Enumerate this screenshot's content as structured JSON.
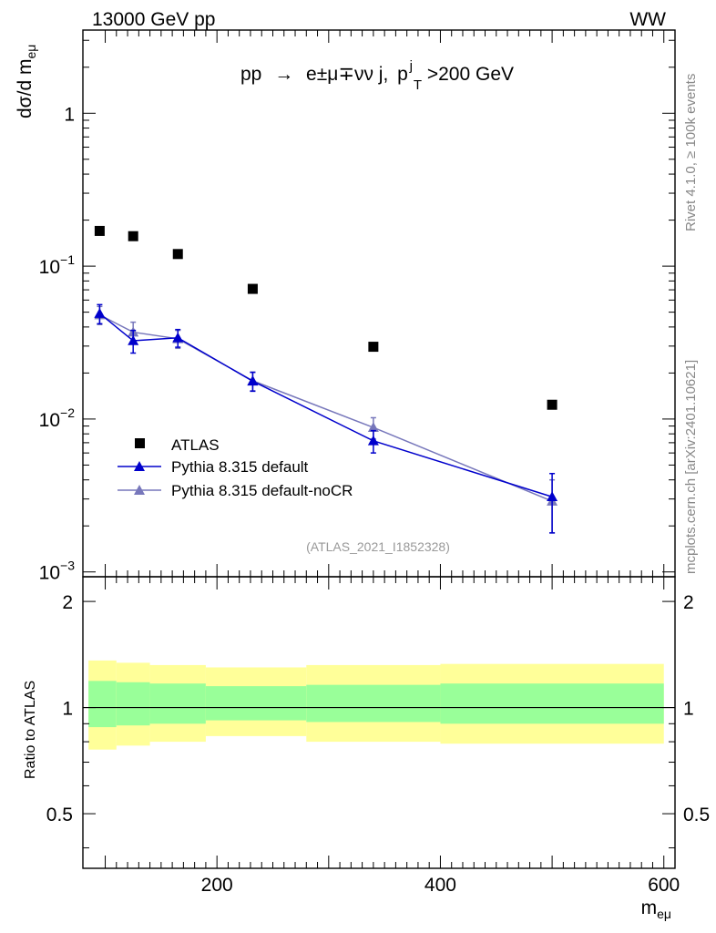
{
  "header": {
    "left": "13000 GeV pp",
    "right": "WW"
  },
  "side_labels": {
    "rivet": "Rivet 4.1.0, ≥ 100k events",
    "mcplots": "mcplots.cern.ch [arXiv:2401.10621]"
  },
  "chart_data": [
    {
      "type": "line",
      "title": "pp → e±μ∓νν j, pTj>200 GeV",
      "title_parts": {
        "prefix": "pp",
        "arrow": "→",
        "leptons": "e±μ∓νν j,",
        "p": "p",
        "sup": "j",
        "sub": "T",
        "cut": ">200 GeV"
      },
      "ylabel": "dσ/d m",
      "ylabel_sub": "eμ",
      "yscale": "log",
      "ylim": [
        0.00093,
        3.5
      ],
      "xlim": [
        80,
        610
      ],
      "ytick_labels": [
        {
          "value": 1,
          "base": "1",
          "exp": ""
        },
        {
          "value": 0.1,
          "base": "10",
          "exp": "−1"
        },
        {
          "value": 0.01,
          "base": "10",
          "exp": "−2"
        },
        {
          "value": 0.001,
          "base": "10",
          "exp": "−3"
        }
      ],
      "reference_label": "(ATLAS_2021_I1852328)",
      "legend_position": "lower-left",
      "series": [
        {
          "name": "ATLAS",
          "marker": "square",
          "color": "#000000",
          "x": [
            95,
            125,
            165,
            232,
            340,
            500
          ],
          "y": [
            0.17,
            0.157,
            0.12,
            0.071,
            0.0297,
            0.0124
          ]
        },
        {
          "name": "Pythia 8.315 default",
          "marker": "triangle",
          "color": "#0000cc",
          "x": [
            95,
            125,
            165,
            232,
            340,
            500
          ],
          "y": [
            0.049,
            0.0325,
            0.034,
            0.0177,
            0.0072,
            0.0031
          ],
          "err": [
            0.007,
            0.0055,
            0.0045,
            0.0025,
            0.0012,
            0.0013
          ]
        },
        {
          "name": "Pythia 8.315 default-noCR",
          "marker": "triangle",
          "color": "#7777bb",
          "x": [
            95,
            125,
            165,
            232,
            340,
            500
          ],
          "y": [
            0.048,
            0.037,
            0.0335,
            0.0178,
            0.0088,
            0.0029
          ],
          "err": [
            0.0065,
            0.006,
            0.0045,
            0.0025,
            0.0014,
            0.0011
          ]
        }
      ]
    },
    {
      "type": "area",
      "ylabel": "Ratio to ATLAS",
      "xlabel": "m",
      "xlabel_sub": "eμ",
      "xlim": [
        80,
        610
      ],
      "ylim": [
        0.35,
        2.35
      ],
      "xticks": [
        200,
        400,
        600
      ],
      "yticks": [
        0.5,
        1,
        2
      ],
      "ytick_labels": [
        "0.5",
        "1",
        "2"
      ],
      "bins": [
        {
          "lo": 85,
          "hi": 110,
          "stat": [
            0.88,
            1.19
          ],
          "total": [
            0.76,
            1.36
          ]
        },
        {
          "lo": 110,
          "hi": 140,
          "stat": [
            0.89,
            1.18
          ],
          "total": [
            0.78,
            1.34
          ]
        },
        {
          "lo": 140,
          "hi": 190,
          "stat": [
            0.9,
            1.17
          ],
          "total": [
            0.8,
            1.32
          ]
        },
        {
          "lo": 190,
          "hi": 280,
          "stat": [
            0.92,
            1.15
          ],
          "total": [
            0.83,
            1.3
          ]
        },
        {
          "lo": 280,
          "hi": 400,
          "stat": [
            0.91,
            1.16
          ],
          "total": [
            0.8,
            1.32
          ]
        },
        {
          "lo": 400,
          "hi": 600,
          "stat": [
            0.9,
            1.17
          ],
          "total": [
            0.79,
            1.33
          ]
        }
      ],
      "band_colors": {
        "stat": "#99ff99",
        "total": "#ffff99"
      }
    }
  ]
}
